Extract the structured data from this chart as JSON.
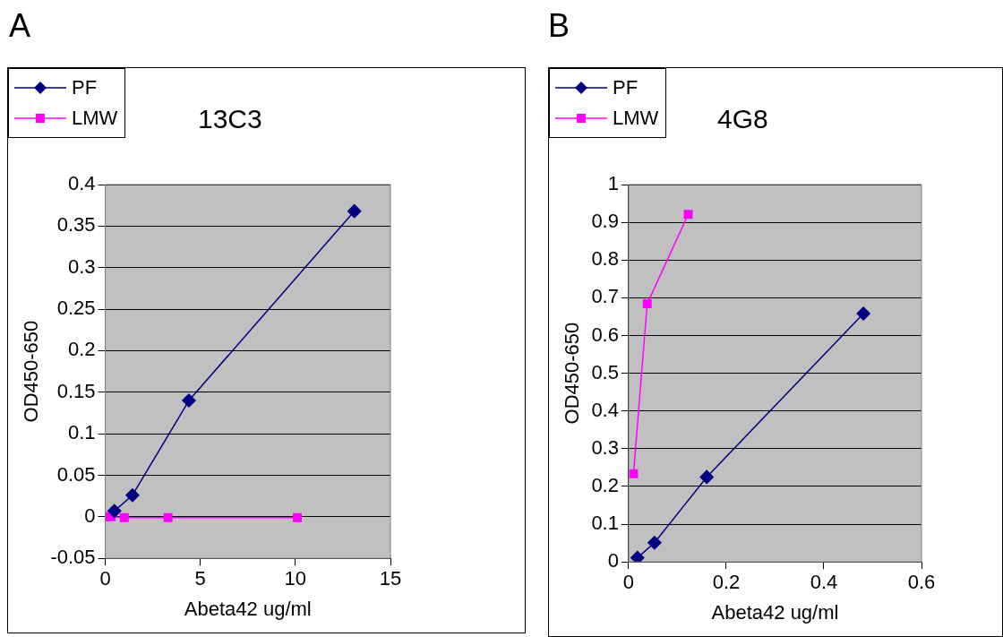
{
  "chart_data": [
    {
      "type": "line",
      "title": "13C3",
      "subtitle": "A",
      "xlabel": "Abeta42 ug/ml",
      "ylabel": "OD450-650",
      "xlim": [
        0,
        15
      ],
      "xticks": [
        0,
        5,
        10,
        15
      ],
      "ylim": [
        -0.05,
        0.4
      ],
      "yticks": [
        -0.05,
        0,
        0.05,
        0.1,
        0.15,
        0.2,
        0.25,
        0.3,
        0.35,
        0.4
      ],
      "grid": "y",
      "legend": "top left",
      "series": [
        {
          "name": "PF",
          "color": "#000080",
          "marker": "diamond",
          "x": [
            0.48,
            1.43,
            4.4,
            13.1
          ],
          "values": [
            0.007,
            0.026,
            0.14,
            0.368
          ]
        },
        {
          "name": "LMW",
          "color": "#ff00ff",
          "marker": "square",
          "x": [
            0,
            0.3,
            1.0,
            3.3,
            10.1
          ],
          "values": [
            0,
            0,
            -0.001,
            -0.001,
            -0.001
          ]
        }
      ]
    },
    {
      "type": "line",
      "title": "4G8",
      "subtitle": "B",
      "xlabel": "Abeta42 ug/ml",
      "ylabel": "OD450-650",
      "xlim": [
        0,
        0.6
      ],
      "xticks": [
        0,
        0.2,
        0.4,
        0.6
      ],
      "ylim": [
        0,
        1
      ],
      "yticks": [
        0,
        0.1,
        0.2,
        0.3,
        0.4,
        0.5,
        0.6,
        0.7,
        0.8,
        0.9,
        1
      ],
      "grid": "y",
      "legend": "top left",
      "series": [
        {
          "name": "PF",
          "color": "#000080",
          "marker": "diamond",
          "x": [
            0.018,
            0.053,
            0.16,
            0.481
          ],
          "values": [
            0.011,
            0.051,
            0.225,
            0.658
          ]
        },
        {
          "name": "LMW",
          "color": "#ff00ff",
          "marker": "square",
          "x": [
            0.01,
            0.038,
            0.122
          ],
          "values": [
            0.234,
            0.684,
            0.921
          ]
        }
      ]
    }
  ]
}
